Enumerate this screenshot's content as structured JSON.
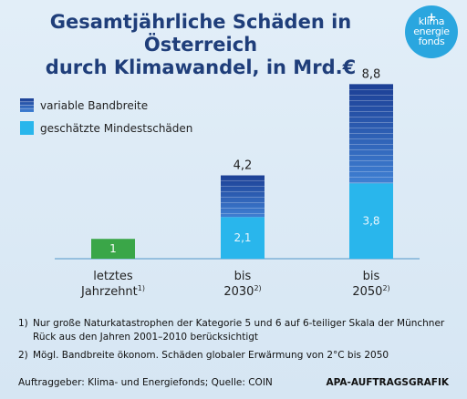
{
  "title_line1": "Gesamtjährliche Schäden in Österreich",
  "title_line2": "durch Klimawandel, in Mrd.€",
  "logo": {
    "line1": "klima",
    "line2": "energie",
    "line3": "fonds",
    "plus": "+"
  },
  "chart_data": {
    "type": "bar",
    "categories": [
      {
        "line1": "letztes",
        "line2": "Jahrzehnt",
        "note": "1)"
      },
      {
        "line1": "bis",
        "line2": "2030",
        "note": "2)"
      },
      {
        "line1": "bis",
        "line2": "2050",
        "note": "2)"
      }
    ],
    "series": [
      {
        "name": "geschätzte Mindestschäden",
        "values": [
          1,
          2.1,
          3.8
        ]
      },
      {
        "name": "variable Bandbreite",
        "values": [
          0,
          2.1,
          5.0
        ]
      }
    ],
    "totals": [
      "",
      "4,2",
      "8,8"
    ],
    "segment_labels": [
      "1",
      "2,1",
      "3,8"
    ],
    "ylim": [
      0,
      9
    ],
    "legend_position": "top-left",
    "grid": false
  },
  "colors": {
    "title": "#1f3e7a",
    "past": "#3aa648",
    "min": "#29b6ec",
    "band_dark": "#1c3f95",
    "band_light": "#3f7fd2",
    "axis": "#7fb2d8",
    "logo": "#2aa6df"
  },
  "footnotes": [
    {
      "num": "1)",
      "text": "Nur große Naturkatastrophen der Kategorie 5 und 6 auf 6-teiliger Skala der Münchner Rück aus den Jahren 2001–2010 berücksichtigt"
    },
    {
      "num": "2)",
      "text": "Mögl. Bandbreite ökonom. Schäden globaler Erwärmung von 2°C bis 2050"
    }
  ],
  "source": "Auftraggeber: Klima- und Energiefonds; Quelle: COIN",
  "credit": "APA-AUFTRAGSGRAFIK"
}
